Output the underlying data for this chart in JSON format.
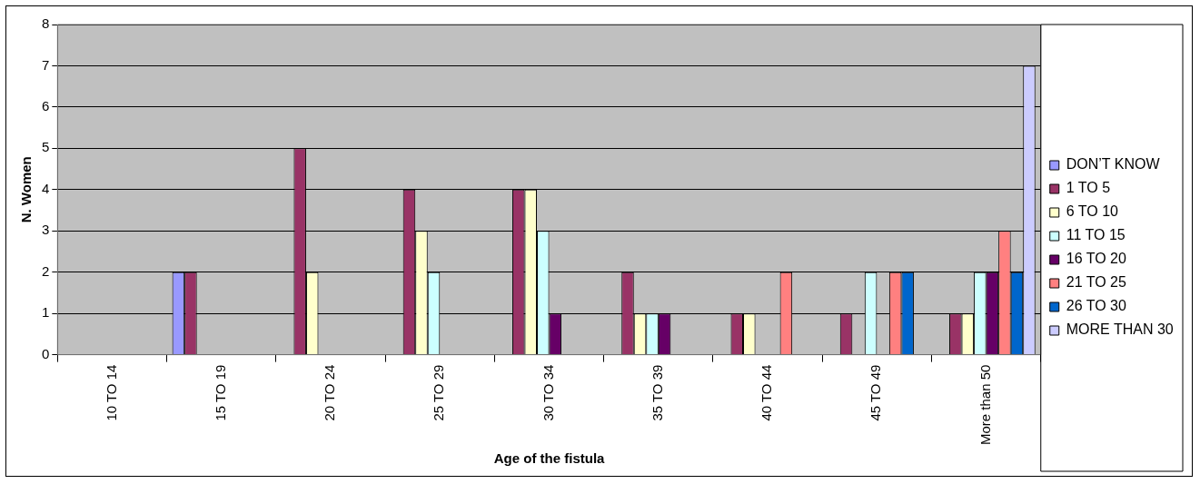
{
  "chart_data": {
    "type": "bar",
    "xlabel": "Age of the fistula",
    "ylabel": "N. Women",
    "categories": [
      "10 TO 14",
      "15 TO 19",
      "20 TO 24",
      "25 TO 29",
      "30 TO 34",
      "35 TO 39",
      "40 TO 44",
      "45 TO 49",
      "More than 50"
    ],
    "series": [
      {
        "name": "DON’T KNOW",
        "color": "#9999ff",
        "values": [
          null,
          2,
          null,
          null,
          null,
          null,
          null,
          null,
          null
        ]
      },
      {
        "name": "1 TO 5",
        "color": "#993366",
        "values": [
          null,
          2,
          5,
          4,
          4,
          2,
          1,
          1,
          1
        ]
      },
      {
        "name": "6 TO 10",
        "color": "#ffffcc",
        "values": [
          null,
          null,
          2,
          3,
          4,
          1,
          1,
          null,
          1
        ]
      },
      {
        "name": "11 TO 15",
        "color": "#ccffff",
        "values": [
          null,
          null,
          null,
          2,
          3,
          1,
          null,
          2,
          2
        ]
      },
      {
        "name": "16 TO 20",
        "color": "#660066",
        "values": [
          null,
          null,
          null,
          null,
          1,
          1,
          null,
          null,
          2
        ]
      },
      {
        "name": "21 TO 25",
        "color": "#ff8080",
        "values": [
          null,
          null,
          null,
          null,
          null,
          null,
          2,
          2,
          3
        ]
      },
      {
        "name": "26 TO 30",
        "color": "#0066cc",
        "values": [
          null,
          null,
          null,
          null,
          null,
          null,
          null,
          2,
          2
        ]
      },
      {
        "name": "MORE THAN 30",
        "color": "#ccccff",
        "values": [
          null,
          null,
          null,
          null,
          null,
          null,
          null,
          null,
          7
        ]
      }
    ],
    "ylim": [
      0,
      8
    ],
    "yticks": [
      0,
      1,
      2,
      3,
      4,
      5,
      6,
      7,
      8
    ],
    "grid": "y",
    "legend": "right"
  }
}
